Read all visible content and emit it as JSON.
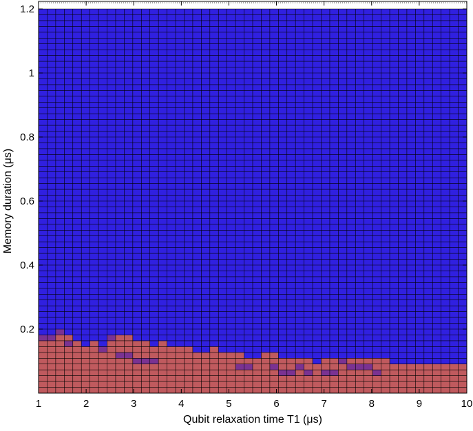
{
  "chart_data": {
    "type": "heatmap",
    "xlabel": "Qubit relaxation time T1 (μs)",
    "ylabel": "Memory duration (μs)",
    "xlim": [
      1,
      10
    ],
    "ylim": [
      0,
      1.2
    ],
    "x_ticks": [
      1,
      2,
      3,
      4,
      5,
      6,
      7,
      8,
      9,
      10
    ],
    "x_tick_labels": [
      "1",
      "2",
      "3",
      "4",
      "5",
      "6",
      "7",
      "8",
      "9",
      "10"
    ],
    "y_ticks": [
      0.2,
      0.4,
      0.6,
      0.8,
      1.0,
      1.2
    ],
    "y_tick_labels": [
      "0.2",
      "0.4",
      "0.6",
      "0.8",
      "1",
      "1.2"
    ],
    "grid": true,
    "grid_columns": 50,
    "grid_rows": 66,
    "colors": {
      "success_region": "#c05a5e",
      "failure_region": "#3020e0",
      "transition_cell": "#7a3292",
      "grid_line": "#000000"
    },
    "legend": "none",
    "boundary_row_heights": [
      10,
      10,
      11,
      10,
      9,
      8,
      9,
      8,
      10,
      10,
      10,
      9,
      9,
      8,
      9,
      8,
      8,
      8,
      7,
      7,
      8,
      7,
      7,
      7,
      6,
      6,
      7,
      7,
      6,
      6,
      6,
      6,
      5,
      6,
      6,
      6,
      6,
      6,
      6,
      6,
      6,
      5,
      5,
      5,
      5,
      5,
      5,
      5,
      5,
      5
    ],
    "transition_cells": [
      [
        0,
        9
      ],
      [
        1,
        9
      ],
      [
        2,
        10
      ],
      [
        3,
        8
      ],
      [
        7,
        7
      ],
      [
        8,
        9
      ],
      [
        9,
        6
      ],
      [
        10,
        6
      ],
      [
        11,
        5
      ],
      [
        12,
        5
      ],
      [
        13,
        5
      ],
      [
        23,
        4
      ],
      [
        24,
        4
      ],
      [
        27,
        4
      ],
      [
        28,
        3
      ],
      [
        29,
        3
      ],
      [
        30,
        4
      ],
      [
        31,
        3
      ],
      [
        33,
        3
      ],
      [
        34,
        3
      ],
      [
        35,
        5
      ],
      [
        36,
        4
      ],
      [
        37,
        4
      ],
      [
        38,
        4
      ],
      [
        39,
        3
      ]
    ]
  }
}
